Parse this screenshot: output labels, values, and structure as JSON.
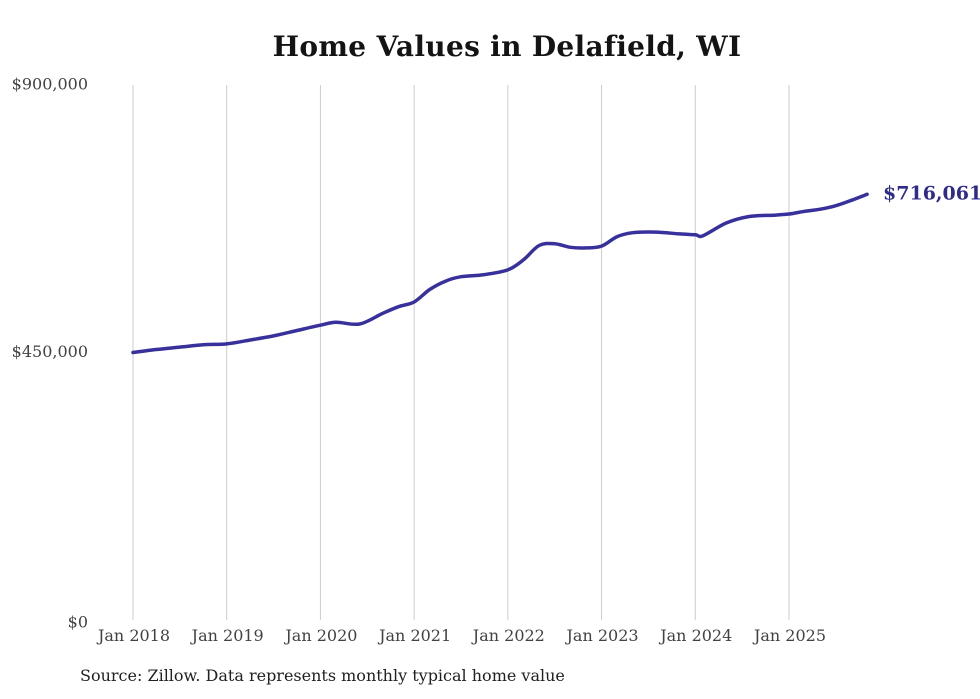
{
  "page": {
    "source_note": "Source: Zillow. Data represents monthly typical home value"
  },
  "colors": {
    "background": "#ffffff",
    "line": "#38319b",
    "annotation": "#2e2b8b",
    "gridline": "#cccccc",
    "axis_text": "#424242",
    "title_text": "#141414",
    "source_text": "#212121"
  },
  "chart_data": {
    "type": "line",
    "title": "Home Values in Delafield, WI",
    "xlabel": "",
    "ylabel": "",
    "ylim": [
      0,
      900000
    ],
    "grid": "vertical-only",
    "legend": "none",
    "x_tick_labels": [
      "Jan 2018",
      "Jan 2019",
      "Jan 2020",
      "Jan 2021",
      "Jan 2022",
      "Jan 2023",
      "Jan 2024",
      "Jan 2025"
    ],
    "y_ticks": [
      {
        "label": "$900,000",
        "value": 900000
      },
      {
        "label": "$450,000",
        "value": 450000
      },
      {
        "label": "$0",
        "value": 0
      }
    ],
    "end_annotation": {
      "label": "$716,061",
      "value": 716061
    },
    "series": [
      {
        "name": "Monthly typical home value",
        "points": [
          [
            "2018-01",
            450000
          ],
          [
            "2018-04",
            455000
          ],
          [
            "2018-07",
            459000
          ],
          [
            "2018-10",
            463000
          ],
          [
            "2019-01",
            464500
          ],
          [
            "2019-04",
            471000
          ],
          [
            "2019-07",
            478000
          ],
          [
            "2019-10",
            487000
          ],
          [
            "2020-01",
            496000
          ],
          [
            "2020-03",
            501000
          ],
          [
            "2020-06",
            498000
          ],
          [
            "2020-09",
            516000
          ],
          [
            "2020-11",
            527000
          ],
          [
            "2021-01",
            535000
          ],
          [
            "2021-03",
            556000
          ],
          [
            "2021-05",
            570000
          ],
          [
            "2021-07",
            577500
          ],
          [
            "2021-10",
            581000
          ],
          [
            "2022-01",
            589000
          ],
          [
            "2022-03",
            606000
          ],
          [
            "2022-05",
            630000
          ],
          [
            "2022-07",
            633000
          ],
          [
            "2022-09",
            627000
          ],
          [
            "2022-11",
            626000
          ],
          [
            "2023-01",
            629000
          ],
          [
            "2023-03",
            645000
          ],
          [
            "2023-05",
            651500
          ],
          [
            "2023-08",
            652500
          ],
          [
            "2023-11",
            649500
          ],
          [
            "2024-01",
            648000
          ],
          [
            "2024-02",
            646500
          ],
          [
            "2024-05",
            668000
          ],
          [
            "2024-08",
            679000
          ],
          [
            "2024-11",
            681000
          ],
          [
            "2025-01",
            683000
          ],
          [
            "2025-03",
            687500
          ],
          [
            "2025-05",
            691000
          ],
          [
            "2025-07",
            697000
          ],
          [
            "2025-09",
            706000
          ],
          [
            "2025-11",
            716061
          ]
        ]
      }
    ]
  }
}
